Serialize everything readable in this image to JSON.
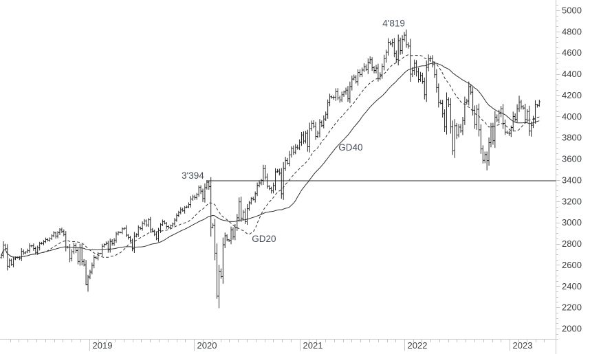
{
  "chart_data": {
    "type": "ohlc",
    "title": "",
    "frequency": "weekly",
    "start_date": "2018-03-02",
    "background": "#ffffff",
    "colors": {
      "bar": "#1b1b1b",
      "ma": "#303030",
      "axis_line": "#c4c7ca",
      "tick_label": "#3d4043",
      "annotation": "#454e59",
      "level_line": "#2a2a2a"
    },
    "y_axis": {
      "side": "right",
      "min": 2000,
      "max": 5000,
      "major_step": 200,
      "minor_step": 50,
      "labels": [
        5000,
        4800,
        4600,
        4400,
        4200,
        4000,
        3800,
        3600,
        3400,
        3200,
        3000,
        2800,
        2600,
        2400,
        2200,
        2000
      ]
    },
    "x_axis": {
      "tick_unit": "month",
      "labels": [
        "2019",
        "2020",
        "2021",
        "2022",
        "2023"
      ]
    },
    "annotations": [
      {
        "text": "4'819",
        "week_index": 201,
        "value": 4819,
        "align": "end"
      },
      {
        "text": "3'394",
        "week_index": 103,
        "value": 3394,
        "align": "end"
      }
    ],
    "level_line": {
      "value": 3394,
      "from_week_index": 103
    },
    "ma_series": [
      {
        "label": "GD20",
        "window": 20,
        "style": "dashed",
        "label_anchor": {
          "week_index": 125,
          "value": 2816
        }
      },
      {
        "label": "GD40",
        "window": 40,
        "style": "solid",
        "label_anchor": {
          "week_index": 168,
          "value": 3678
        }
      }
    ],
    "weekly_closes": [
      2691,
      2787,
      2752,
      2588,
      2641,
      2604,
      2656,
      2670,
      2670,
      2663,
      2728,
      2713,
      2721,
      2734,
      2779,
      2780,
      2755,
      2718,
      2760,
      2801,
      2802,
      2819,
      2840,
      2833,
      2850,
      2875,
      2902,
      2872,
      2905,
      2930,
      2914,
      2886,
      2767,
      2768,
      2659,
      2723,
      2781,
      2736,
      2633,
      2760,
      2633,
      2600,
      2417,
      2486,
      2532,
      2596,
      2671,
      2665,
      2707,
      2708,
      2776,
      2793,
      2803,
      2743,
      2822,
      2801,
      2834,
      2893,
      2907,
      2905,
      2940,
      2946,
      2881,
      2860,
      2826,
      2752,
      2873,
      2887,
      2950,
      2942,
      2990,
      3014,
      2977,
      3026,
      2932,
      2919,
      2889,
      2847,
      2926,
      2979,
      3007,
      2992,
      2962,
      2952,
      2970,
      2986,
      3023,
      3067,
      3093,
      3120,
      3110,
      3141,
      3146,
      3169,
      3221,
      3240,
      3235,
      3265,
      3330,
      3295,
      3226,
      3328,
      3380,
      3338,
      2954,
      2972,
      2711,
      2305,
      2541,
      2489,
      2790,
      2875,
      2837,
      2831,
      2930,
      2864,
      2955,
      3044,
      3194,
      3041,
      3098,
      3009,
      3130,
      3185,
      3225,
      3216,
      3271,
      3351,
      3373,
      3397,
      3508,
      3427,
      3341,
      3319,
      3298,
      3348,
      3477,
      3484,
      3465,
      3270,
      3509,
      3585,
      3558,
      3638,
      3699,
      3663,
      3709,
      3703,
      3756,
      3825,
      3768,
      3841,
      3714,
      3887,
      3935,
      3907,
      3811,
      3842,
      3943,
      3913,
      3975,
      4020,
      4129,
      4185,
      4180,
      4181,
      4233,
      4174,
      4156,
      4204,
      4230,
      4247,
      4166,
      4281,
      4352,
      4370,
      4327,
      4412,
      4395,
      4437,
      4468,
      4442,
      4510,
      4535,
      4459,
      4433,
      4455,
      4357,
      4391,
      4471,
      4545,
      4605,
      4698,
      4683,
      4698,
      4595,
      4538,
      4712,
      4621,
      4726,
      4766,
      4677,
      4663,
      4398,
      4432,
      4501,
      4419,
      4349,
      4385,
      4329,
      4204,
      4463,
      4543,
      4546,
      4488,
      4393,
      4272,
      4131,
      4123,
      4024,
      3901,
      4158,
      4109,
      3901,
      3675,
      3912,
      3825,
      3899,
      3863,
      3962,
      4130,
      4145,
      4280,
      4228,
      4058,
      3924,
      4067,
      3873,
      3693,
      3586,
      3640,
      3583,
      3753,
      3901,
      3771,
      3993,
      3965,
      4026,
      4072,
      3934,
      3852,
      3845,
      3840,
      3895,
      3999,
      3973,
      4071,
      4136,
      4090,
      4079,
      3970,
      4046,
      3862,
      3917,
      3971,
      4109,
      4105,
      4138
    ],
    "overrides": {
      "42": {
        "low": 2408
      },
      "43": {
        "low": 2347
      },
      "103": {
        "high": 3394
      },
      "107": {
        "low": 2280
      },
      "108": {
        "low": 2192
      },
      "201": {
        "high": 4819
      },
      "224": {
        "low": 3637
      },
      "241": {
        "low": 3491
      },
      "257": {
        "high": 4195
      },
      "263": {
        "low": 3809
      }
    }
  }
}
